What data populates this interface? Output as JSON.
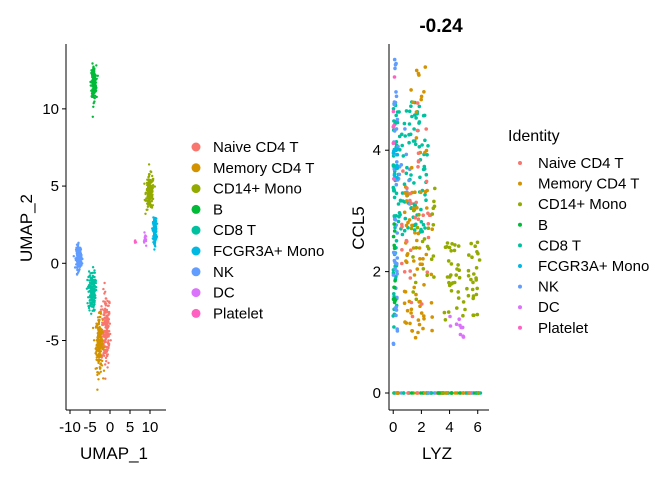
{
  "chart_data": [
    {
      "type": "scatter",
      "title": "",
      "xlabel": "UMAP_1",
      "ylabel": "UMAP_2",
      "xlim": [
        -11,
        14
      ],
      "ylim": [
        -9.5,
        14.2
      ],
      "xticks": [
        -10,
        -5,
        0,
        5,
        10
      ],
      "yticks": [
        -5,
        0,
        5,
        10
      ],
      "xtick_labels": [
        "-10",
        "-5",
        "0",
        "5",
        "10"
      ],
      "ytick_labels": [
        "-5",
        "0",
        "5",
        "10"
      ],
      "legend": {
        "position": "right",
        "entries": [
          "Naive CD4 T",
          "Memory CD4 T",
          "CD14+ Mono",
          "B",
          "CD8 T",
          "FCGR3A+ Mono",
          "NK",
          "DC",
          "Platelet"
        ]
      },
      "clusters": [
        {
          "name": "Naive CD4 T",
          "color": "#F8766D",
          "center": [
            -1.0,
            -4.3
          ],
          "spread": [
            1.0,
            2.2
          ]
        },
        {
          "name": "Memory CD4 T",
          "color": "#D39200",
          "center": [
            -2.7,
            -5.2
          ],
          "spread": [
            0.8,
            1.6
          ]
        },
        {
          "name": "CD14+ Mono",
          "color": "#93AA00",
          "center": [
            10.0,
            4.6
          ],
          "spread": [
            0.9,
            1.0
          ]
        },
        {
          "name": "B",
          "color": "#00BA38",
          "center": [
            -4.1,
            11.7
          ],
          "spread": [
            0.6,
            1.0
          ]
        },
        {
          "name": "CD8 T",
          "color": "#00C19F",
          "center": [
            -4.5,
            -1.8
          ],
          "spread": [
            0.8,
            1.2
          ]
        },
        {
          "name": "FCGR3A+ Mono",
          "color": "#00B9E3",
          "center": [
            11.2,
            2.1
          ],
          "spread": [
            0.4,
            0.7
          ]
        },
        {
          "name": "NK",
          "color": "#619CFF",
          "center": [
            -7.8,
            0.4
          ],
          "spread": [
            0.6,
            0.7
          ]
        },
        {
          "name": "DC",
          "color": "#DB72FB",
          "center": [
            8.8,
            1.5
          ],
          "spread": [
            0.3,
            0.4
          ]
        },
        {
          "name": "Platelet",
          "color": "#FF61C3",
          "center": [
            6.3,
            1.4
          ],
          "spread": [
            0.15,
            0.1
          ]
        }
      ]
    },
    {
      "type": "scatter",
      "title": "-0.24",
      "xlabel": "LYZ",
      "ylabel": "CCL5",
      "xlim": [
        -0.3,
        6.8
      ],
      "ylim": [
        -0.28,
        5.75
      ],
      "xticks": [
        0,
        2,
        4,
        6
      ],
      "yticks": [
        0,
        2,
        4
      ],
      "xtick_labels": [
        "0",
        "2",
        "4",
        "6"
      ],
      "ytick_labels": [
        "0",
        "2",
        "4"
      ],
      "legend": {
        "position": "right",
        "title": "Identity",
        "entries": [
          "Naive CD4 T",
          "Memory CD4 T",
          "CD14+ Mono",
          "B",
          "CD8 T",
          "FCGR3A+ Mono",
          "NK",
          "DC",
          "Platelet"
        ]
      },
      "clusters": [
        {
          "name": "CD8 T",
          "color": "#00C19F",
          "regions": [
            {
              "x": [
                0,
                2.5
              ],
              "y": [
                2.6,
                4.8
              ],
              "n": 110
            },
            {
              "x": [
                0,
                0.25
              ],
              "y": [
                1.0,
                4.8
              ],
              "n": 40
            }
          ]
        },
        {
          "name": "NK",
          "color": "#619CFF",
          "regions": [
            {
              "x": [
                0,
                0.3
              ],
              "y": [
                0.8,
                5.5
              ],
              "n": 45
            },
            {
              "x": [
                0,
                1.2
              ],
              "y": [
                3.0,
                4.5
              ],
              "n": 15
            }
          ]
        },
        {
          "name": "Memory CD4 T",
          "color": "#D39200",
          "regions": [
            {
              "x": [
                0.8,
                2.8
              ],
              "y": [
                0.9,
                3.4
              ],
              "n": 70
            },
            {
              "x": [
                1.2,
                2.5
              ],
              "y": [
                3.5,
                5.4
              ],
              "n": 15
            }
          ]
        },
        {
          "name": "Naive CD4 T",
          "color": "#F8766D",
          "regions": [
            {
              "x": [
                0.6,
                2.6
              ],
              "y": [
                1.2,
                4.8
              ],
              "n": 35
            }
          ]
        },
        {
          "name": "CD14+ Mono",
          "color": "#93AA00",
          "regions": [
            {
              "x": [
                3.4,
                6.2
              ],
              "y": [
                1.2,
                2.5
              ],
              "n": 60
            },
            {
              "x": [
                1.0,
                3.0
              ],
              "y": [
                1.5,
                3.4
              ],
              "n": 25
            }
          ]
        },
        {
          "name": "B",
          "color": "#00BA38",
          "regions": [
            {
              "x": [
                0,
                0.2
              ],
              "y": [
                1.2,
                2.8
              ],
              "n": 12
            }
          ]
        },
        {
          "name": "FCGR3A+ Mono",
          "color": "#00B9E3",
          "regions": [
            {
              "x": [
                0,
                0.3
              ],
              "y": [
                3.5,
                4.2
              ],
              "n": 10
            }
          ]
        },
        {
          "name": "DC",
          "color": "#DB72FB",
          "regions": [
            {
              "x": [
                4.0,
                5.0
              ],
              "y": [
                0.9,
                1.3
              ],
              "n": 10
            }
          ]
        },
        {
          "name": "Platelet",
          "color": "#FF61C3",
          "regions": [
            {
              "x": [
                0,
                0.2
              ],
              "y": [
                3.5,
                5.5
              ],
              "n": 6
            }
          ]
        }
      ],
      "zero_rows": {
        "y": 0,
        "x": [
          0,
          6.3
        ],
        "colors": [
          "#93AA00",
          "#00C19F",
          "#F8766D",
          "#D39200",
          "#00BA38",
          "#619CFF"
        ]
      }
    }
  ]
}
